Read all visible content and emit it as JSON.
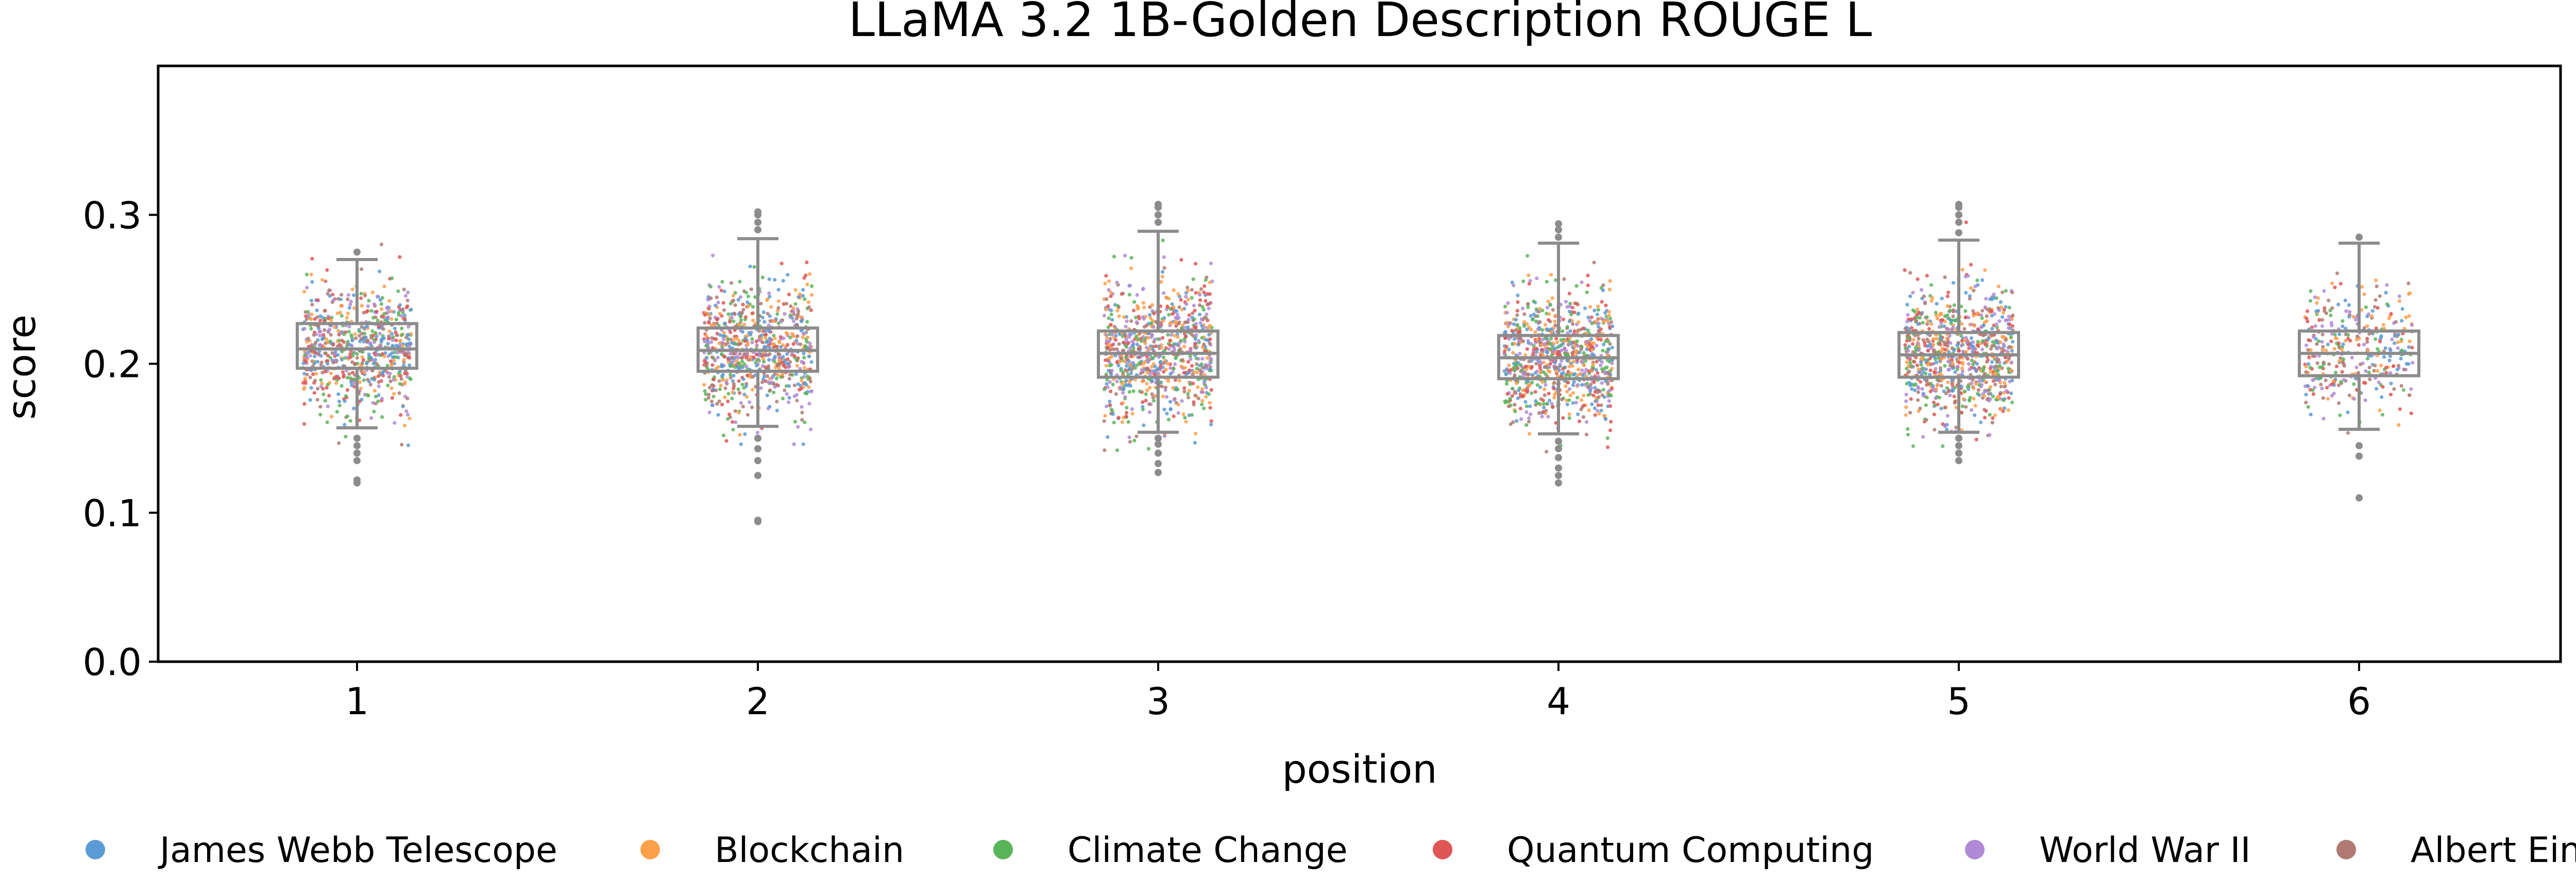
{
  "chart_data": {
    "type": "scatter",
    "title": "LLaMA 3.2 1B-Golden Description ROUGE L",
    "xlabel": "position",
    "ylabel": "score",
    "categories": [
      "1",
      "2",
      "3",
      "4",
      "5",
      "6"
    ],
    "ylim": [
      0.0,
      0.4
    ],
    "yticks": [
      0.0,
      0.1,
      0.2,
      0.3
    ],
    "ytick_labels": [
      "0.0",
      "0.1",
      "0.2",
      "0.3"
    ],
    "grid": false,
    "legend_position": "bottom",
    "point_counts": [
      700,
      750,
      800,
      850,
      850,
      350
    ],
    "series": [
      {
        "name": "James Webb Telescope",
        "color": "#5b9bd5"
      },
      {
        "name": "Blockchain",
        "color": "#ffa04a"
      },
      {
        "name": "Climate Change",
        "color": "#5ab55a"
      },
      {
        "name": "Quantum Computing",
        "color": "#e05555"
      },
      {
        "name": "World War II",
        "color": "#b08ad6"
      },
      {
        "name": "Albert Einstein",
        "color": "#b07a72"
      }
    ],
    "boxplots": [
      {
        "position": "1",
        "whisker_low": 0.157,
        "q1": 0.197,
        "median": 0.21,
        "q3": 0.227,
        "whisker_high": 0.27,
        "outliers": [
          0.12,
          0.122,
          0.135,
          0.14,
          0.145,
          0.15,
          0.275
        ]
      },
      {
        "position": "2",
        "whisker_low": 0.158,
        "q1": 0.195,
        "median": 0.209,
        "q3": 0.224,
        "whisker_high": 0.284,
        "outliers": [
          0.094,
          0.095,
          0.125,
          0.135,
          0.143,
          0.15,
          0.29,
          0.295,
          0.3,
          0.302
        ]
      },
      {
        "position": "3",
        "whisker_low": 0.154,
        "q1": 0.191,
        "median": 0.207,
        "q3": 0.222,
        "whisker_high": 0.289,
        "outliers": [
          0.127,
          0.133,
          0.14,
          0.146,
          0.15,
          0.295,
          0.3,
          0.305,
          0.307
        ]
      },
      {
        "position": "4",
        "whisker_low": 0.153,
        "q1": 0.19,
        "median": 0.204,
        "q3": 0.219,
        "whisker_high": 0.281,
        "outliers": [
          0.12,
          0.125,
          0.13,
          0.137,
          0.143,
          0.148,
          0.285,
          0.29,
          0.294
        ]
      },
      {
        "position": "5",
        "whisker_low": 0.154,
        "q1": 0.191,
        "median": 0.206,
        "q3": 0.221,
        "whisker_high": 0.283,
        "outliers": [
          0.135,
          0.14,
          0.145,
          0.15,
          0.288,
          0.295,
          0.3,
          0.305,
          0.307
        ]
      },
      {
        "position": "6",
        "whisker_low": 0.156,
        "q1": 0.192,
        "median": 0.207,
        "q3": 0.222,
        "whisker_high": 0.281,
        "outliers": [
          0.11,
          0.138,
          0.145,
          0.285
        ]
      }
    ]
  }
}
